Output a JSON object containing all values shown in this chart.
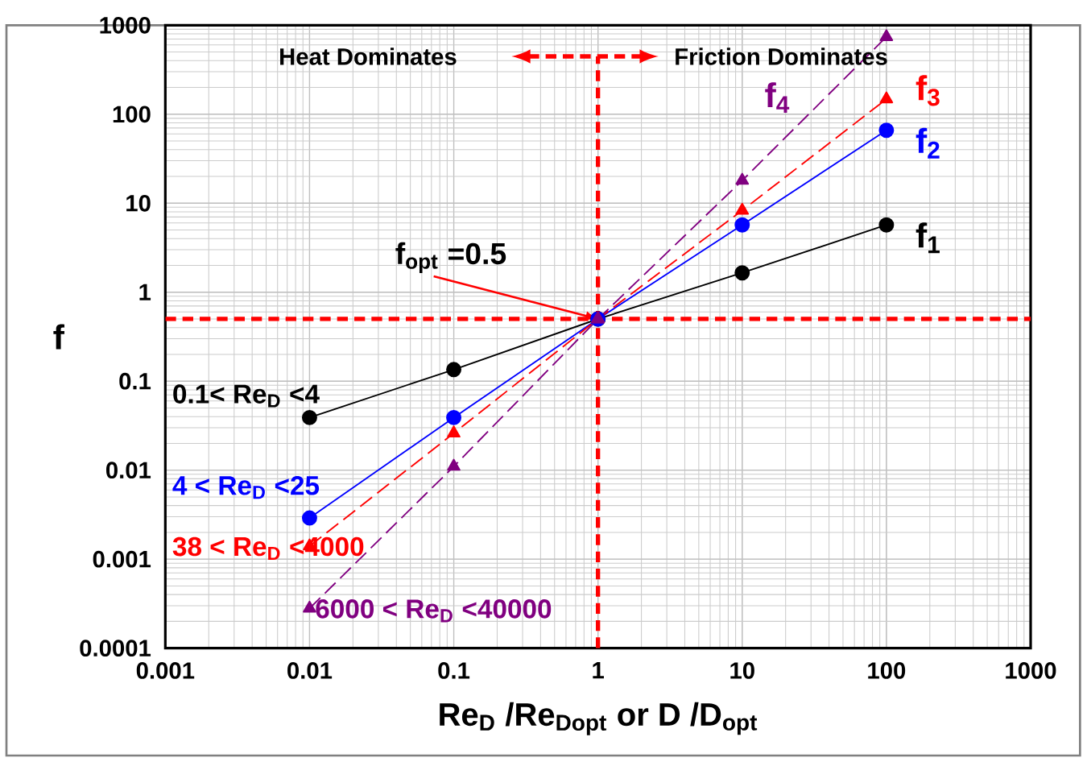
{
  "chart_data": {
    "type": "line",
    "xlabel": "**Re$_{D}$ /Re$_{Dopt}$    or    D /D$_{opt}$**",
    "ylabel": "f",
    "x": [
      0.01,
      0.1,
      1,
      10,
      100
    ],
    "series": [
      {
        "name": "f$_{1}$",
        "color": "#000000",
        "values": [
          0.039,
          0.135,
          0.5,
          1.65,
          5.7
        ],
        "marker": "circle",
        "line_style": "solid"
      },
      {
        "name": "f$_{2}$",
        "color": "#0000ff",
        "values": [
          0.0029,
          0.039,
          0.5,
          5.7,
          66
        ],
        "marker": "circle",
        "line_style": "solid"
      },
      {
        "name": "f$_{3}$",
        "color": "#ff0000",
        "values": [
          0.0014,
          0.026,
          0.5,
          8.3,
          148
        ],
        "marker": "triangle",
        "line_style": "dashed"
      },
      {
        "name": "f$_{4}$",
        "color": "#800080",
        "values": [
          0.00028,
          0.011,
          0.5,
          18,
          740
        ],
        "marker": "triangle",
        "line_style": "dashed"
      }
    ],
    "log": "xy",
    "xlim": [
      0.001,
      1000
    ],
    "ylim": [
      0.0001,
      1000
    ],
    "xticks": [
      0.001,
      0.01,
      0.1,
      1,
      10,
      100,
      1000
    ],
    "yticks": [
      0.0001,
      0.001,
      0.01,
      0.1,
      1,
      10,
      100,
      1000
    ],
    "grid": true,
    "ref_lines": [
      {
        "axis": "x",
        "value": 1,
        "color": "#ff0000",
        "line_style": "dashed"
      },
      {
        "axis": "y",
        "value": 0.5,
        "color": "#ff0000",
        "line_style": "dashed"
      }
    ],
    "annotations": [
      {
        "text": "f$_{opt}$ =0.5",
        "x": 1,
        "y": 0.5
      },
      "Heat Dominates",
      "Friction Dominates",
      "0.1< Re$_{D}$ <4",
      "4 < Re$_{D}$ <25",
      "38 < Re$_{D}$ <4000",
      "6000 < Re$_{D}$ <40000"
    ]
  }
}
